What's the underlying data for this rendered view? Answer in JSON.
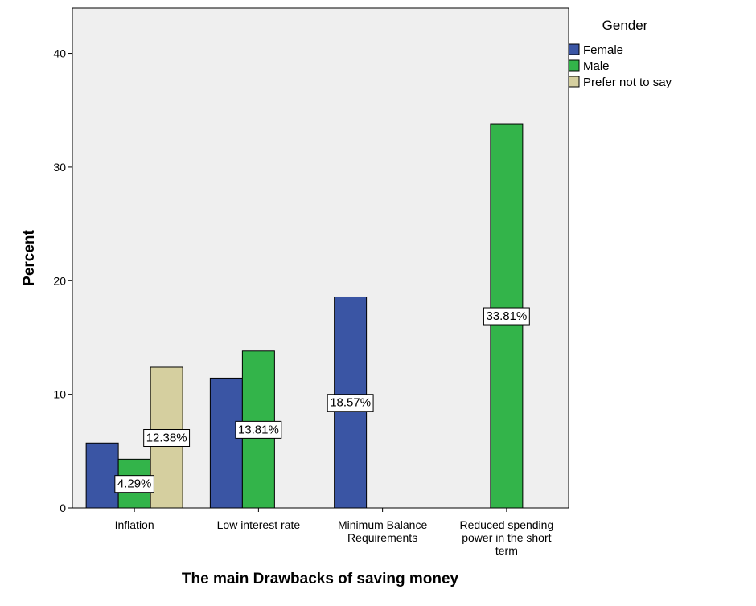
{
  "chart_data": {
    "type": "bar",
    "xlabel": "The main Drawbacks of saving money",
    "ylabel": "Percent",
    "ylim": [
      0,
      44
    ],
    "yticks": [
      0,
      10,
      20,
      30,
      40
    ],
    "categories": [
      [
        "Inflation"
      ],
      [
        "Low interest rate"
      ],
      [
        "Minimum Balance",
        "Requirements"
      ],
      [
        "Reduced spending",
        "power in the short",
        "term"
      ]
    ],
    "legend_title": "Gender",
    "legend_position": "top-right",
    "series": [
      {
        "name": "Female",
        "color": "#3a55a4",
        "values": [
          5.71,
          11.43,
          18.57,
          null
        ]
      },
      {
        "name": "Male",
        "color": "#33b44a",
        "values": [
          4.29,
          13.81,
          null,
          33.81
        ]
      },
      {
        "name": "Prefer not to say",
        "color": "#d5cf9f",
        "values": [
          12.38,
          null,
          null,
          null
        ]
      }
    ],
    "data_labels": [
      {
        "series": 1,
        "category": 0,
        "text": "4.29%"
      },
      {
        "series": 2,
        "category": 0,
        "text": "12.38%"
      },
      {
        "series": 1,
        "category": 1,
        "text": "13.81%"
      },
      {
        "series": 0,
        "category": 2,
        "text": "18.57%"
      },
      {
        "series": 1,
        "category": 3,
        "text": "33.81%"
      }
    ],
    "plot_background": "#efefef",
    "grid": false
  }
}
